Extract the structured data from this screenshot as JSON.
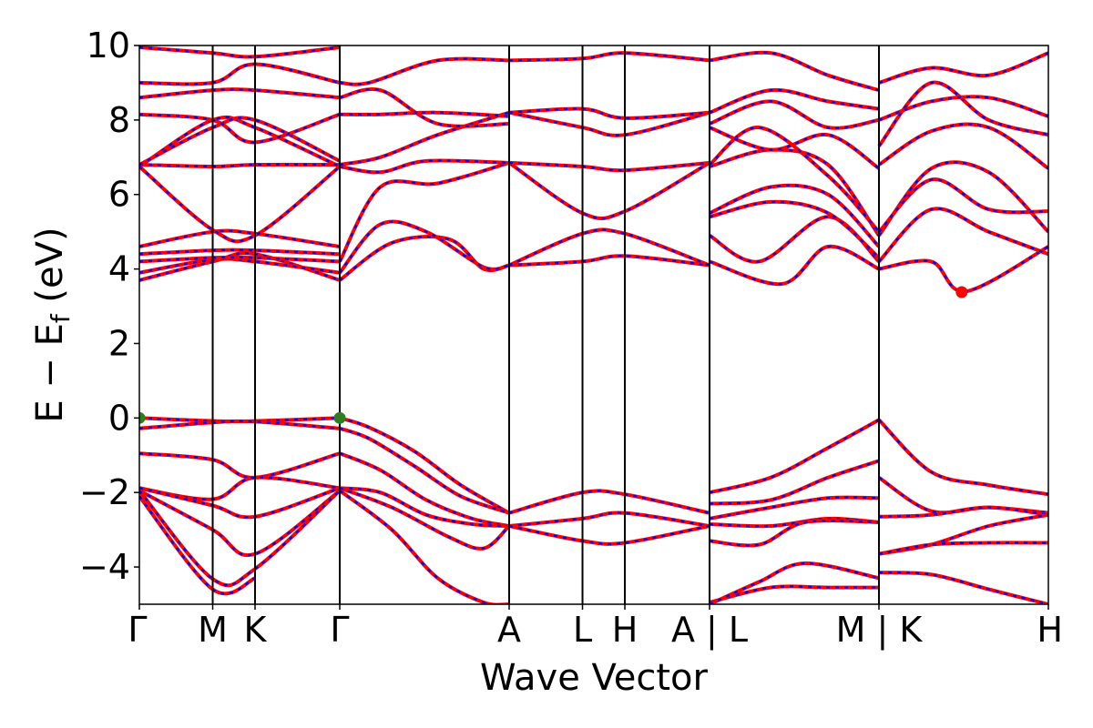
{
  "chart_data": {
    "type": "line",
    "title": "",
    "xlabel": "Wave Vector",
    "ylabel_parts": {
      "main": "E − E",
      "subscript": "f",
      "unit": " (eV)"
    },
    "ylim": [
      -5,
      10
    ],
    "yticks": [
      {
        "value": -4,
        "label": "−4"
      },
      {
        "value": -2,
        "label": "−2"
      },
      {
        "value": 0,
        "label": "0"
      },
      {
        "value": 2,
        "label": "2"
      },
      {
        "value": 4,
        "label": "4"
      },
      {
        "value": 6,
        "label": "6"
      },
      {
        "value": 8,
        "label": "8"
      },
      {
        "value": 10,
        "label": "10"
      }
    ],
    "kpath": [
      {
        "x": 0.0,
        "label": "Γ"
      },
      {
        "x": 0.639,
        "label": "M"
      },
      {
        "x": 1.008,
        "label": "K"
      },
      {
        "x": 1.746,
        "label": "Γ"
      },
      {
        "x": 3.222,
        "label": "A"
      },
      {
        "x": 3.861,
        "label": "L"
      },
      {
        "x": 4.23,
        "label": "H"
      },
      {
        "x": 4.968,
        "label": "A | L"
      },
      {
        "x": 6.444,
        "label": "M | K"
      },
      {
        "x": 7.92,
        "label": "H"
      }
    ],
    "xlim": [
      0,
      7.92
    ],
    "legend": "none",
    "grid": false,
    "series_style": {
      "primary_color": "#ff0000",
      "overlay_color": "#0000ff"
    },
    "series": [
      {
        "x": [
          0,
          0.639,
          1.008,
          1.746
        ],
        "y": [
          0.0,
          -0.08,
          -0.08,
          0.0
        ]
      },
      {
        "x": [
          0,
          0.639,
          1.008,
          1.746
        ],
        "y": [
          -0.28,
          -0.12,
          -0.1,
          -0.28
        ]
      },
      {
        "x": [
          0,
          0.639,
          1.008,
          1.746
        ],
        "y": [
          -0.95,
          -1.12,
          -1.6,
          -0.95
        ]
      },
      {
        "x": [
          0,
          0.639,
          1.008,
          1.746
        ],
        "y": [
          -1.88,
          -2.18,
          -1.6,
          -1.88
        ]
      },
      {
        "x": [
          0,
          0.639,
          1.008,
          1.746
        ],
        "y": [
          -1.88,
          -2.35,
          -2.65,
          -1.88
        ]
      },
      {
        "x": [
          0,
          0.639,
          1.008,
          1.746
        ],
        "y": [
          -1.95,
          -3.0,
          -3.65,
          -1.95
        ]
      },
      {
        "x": [
          0,
          0.639,
          1.008,
          1.746
        ],
        "y": [
          -1.95,
          -4.32,
          -4.05,
          -1.95
        ]
      },
      {
        "x": [
          0,
          0.639,
          1.008
        ],
        "y": [
          -2.1,
          -4.6,
          -4.3
        ]
      },
      {
        "x": [
          1.746,
          2.0,
          2.4,
          2.8,
          3.222
        ],
        "y": [
          0.0,
          -0.25,
          -0.9,
          -1.8,
          -2.55
        ]
      },
      {
        "x": [
          1.746,
          2.0,
          2.4,
          2.8,
          3.222
        ],
        "y": [
          -0.28,
          -0.55,
          -1.3,
          -2.1,
          -2.55
        ]
      },
      {
        "x": [
          1.746,
          2.1,
          2.5,
          2.9,
          3.222
        ],
        "y": [
          -0.95,
          -1.4,
          -2.2,
          -2.7,
          -2.9
        ]
      },
      {
        "x": [
          1.746,
          2.1,
          2.5,
          2.9,
          3.222
        ],
        "y": [
          -1.88,
          -2.0,
          -2.6,
          -2.85,
          -2.9
        ]
      },
      {
        "x": [
          1.746,
          2.2,
          2.7,
          3.0,
          3.222
        ],
        "y": [
          -1.88,
          -2.4,
          -3.2,
          -3.5,
          -2.9
        ]
      },
      {
        "x": [
          1.746,
          2.2,
          2.6,
          3.0,
          3.222
        ],
        "y": [
          -1.95,
          -3.0,
          -4.3,
          -4.95,
          -5.0
        ]
      },
      {
        "x": [
          3.222,
          3.861,
          4.23,
          4.968
        ],
        "y": [
          -2.55,
          -2.0,
          -2.05,
          -2.55
        ]
      },
      {
        "x": [
          3.222,
          3.861,
          4.23,
          4.968
        ],
        "y": [
          -2.9,
          -2.7,
          -2.55,
          -2.9
        ]
      },
      {
        "x": [
          3.222,
          3.861,
          4.23,
          4.968
        ],
        "y": [
          -2.9,
          -3.3,
          -3.35,
          -2.9
        ]
      },
      {
        "x": [
          4.968,
          5.5,
          6.0,
          6.444
        ],
        "y": [
          -2.0,
          -1.6,
          -0.8,
          -0.05
        ]
      },
      {
        "x": [
          4.968,
          5.5,
          6.0,
          6.444
        ],
        "y": [
          -2.3,
          -2.2,
          -1.6,
          -1.15
        ]
      },
      {
        "x": [
          4.968,
          5.5,
          6.0,
          6.444
        ],
        "y": [
          -2.7,
          -2.4,
          -2.15,
          -2.15
        ]
      },
      {
        "x": [
          4.968,
          5.5,
          6.0,
          6.444
        ],
        "y": [
          -2.85,
          -2.9,
          -2.7,
          -2.8
        ]
      },
      {
        "x": [
          4.968,
          5.4,
          5.8,
          6.444
        ],
        "y": [
          -3.3,
          -3.4,
          -2.8,
          -2.8
        ]
      },
      {
        "x": [
          4.968,
          5.5,
          6.0,
          6.444
        ],
        "y": [
          -4.95,
          -4.55,
          -4.55,
          -4.55
        ]
      },
      {
        "x": [
          4.968,
          5.4,
          5.8,
          6.444
        ],
        "y": [
          -5.0,
          -4.4,
          -3.9,
          -4.3
        ]
      },
      {
        "x": [
          6.444,
          6.9,
          7.4,
          7.92
        ],
        "y": [
          -0.05,
          -1.45,
          -1.8,
          -2.05
        ]
      },
      {
        "x": [
          6.444,
          6.9,
          7.4,
          7.92
        ],
        "y": [
          -1.6,
          -2.5,
          -2.4,
          -2.55
        ]
      },
      {
        "x": [
          6.444,
          6.9,
          7.4,
          7.92
        ],
        "y": [
          -2.65,
          -2.6,
          -2.4,
          -2.6
        ]
      },
      {
        "x": [
          6.444,
          6.9,
          7.4,
          7.92
        ],
        "y": [
          -3.65,
          -3.4,
          -2.9,
          -2.6
        ]
      },
      {
        "x": [
          6.444,
          6.9,
          7.4,
          7.92
        ],
        "y": [
          -3.65,
          -3.4,
          -3.35,
          -3.35
        ]
      },
      {
        "x": [
          6.444,
          6.9,
          7.4,
          7.92
        ],
        "y": [
          -4.15,
          -4.2,
          -4.6,
          -5.0
        ]
      },
      {
        "x": [
          0,
          0.639,
          1.008,
          1.746
        ],
        "y": [
          3.7,
          4.2,
          4.4,
          3.7
        ]
      },
      {
        "x": [
          0,
          0.639,
          1.008,
          1.746
        ],
        "y": [
          3.9,
          4.25,
          4.2,
          3.9
        ]
      },
      {
        "x": [
          0,
          0.639,
          1.008,
          1.746
        ],
        "y": [
          4.2,
          4.3,
          4.3,
          4.2
        ]
      },
      {
        "x": [
          0,
          0.639,
          1.008,
          1.746
        ],
        "y": [
          4.4,
          4.5,
          4.5,
          4.4
        ]
      },
      {
        "x": [
          0,
          0.639,
          1.008,
          1.746
        ],
        "y": [
          4.6,
          5.0,
          4.95,
          4.6
        ]
      },
      {
        "x": [
          0,
          0.639,
          1.008,
          1.746
        ],
        "y": [
          6.75,
          5.05,
          4.9,
          6.75
        ]
      },
      {
        "x": [
          0,
          0.639,
          1.008,
          1.746
        ],
        "y": [
          6.8,
          6.75,
          6.8,
          6.8
        ]
      },
      {
        "x": [
          0,
          0.639,
          1.008,
          1.746
        ],
        "y": [
          6.75,
          8.0,
          7.8,
          6.75
        ]
      },
      {
        "x": [
          0,
          0.639,
          1.008,
          1.746
        ],
        "y": [
          6.8,
          7.8,
          8.0,
          6.9
        ]
      },
      {
        "x": [
          0,
          0.639,
          1.008,
          1.746
        ],
        "y": [
          8.15,
          8.0,
          7.4,
          8.15
        ]
      },
      {
        "x": [
          0,
          0.639,
          1.008,
          1.746
        ],
        "y": [
          8.6,
          8.8,
          8.8,
          8.6
        ]
      },
      {
        "x": [
          0,
          0.639,
          1.008,
          1.746
        ],
        "y": [
          9.0,
          9.0,
          9.5,
          9.0
        ]
      },
      {
        "x": [
          0,
          0.639,
          1.008,
          1.746
        ],
        "y": [
          9.95,
          9.8,
          9.7,
          9.95
        ]
      },
      {
        "x": [
          1.746,
          2.2,
          2.7,
          3.0,
          3.222
        ],
        "y": [
          3.7,
          4.7,
          4.8,
          4.0,
          4.1
        ]
      },
      {
        "x": [
          1.746,
          2.1,
          2.5,
          3.0,
          3.222
        ],
        "y": [
          3.9,
          5.2,
          5.0,
          4.05,
          4.1
        ]
      },
      {
        "x": [
          1.746,
          2.1,
          2.6,
          3.222
        ],
        "y": [
          4.2,
          6.2,
          6.3,
          6.85
        ]
      },
      {
        "x": [
          1.746,
          2.1,
          2.5,
          3.222
        ],
        "y": [
          6.75,
          6.6,
          6.9,
          6.85
        ]
      },
      {
        "x": [
          1.746,
          2.1,
          2.6,
          3.222
        ],
        "y": [
          6.8,
          7.0,
          7.6,
          8.2
        ]
      },
      {
        "x": [
          1.746,
          2.1,
          2.6,
          3.222
        ],
        "y": [
          8.15,
          8.15,
          8.2,
          8.1
        ]
      },
      {
        "x": [
          1.746,
          2.1,
          2.6,
          3.222
        ],
        "y": [
          8.6,
          8.8,
          7.9,
          7.9
        ]
      },
      {
        "x": [
          1.746,
          2.0,
          2.6,
          3.222
        ],
        "y": [
          9.0,
          9.0,
          9.6,
          9.6
        ]
      },
      {
        "x": [
          3.222,
          3.861,
          4.23,
          4.968
        ],
        "y": [
          4.1,
          4.2,
          4.35,
          4.1
        ]
      },
      {
        "x": [
          3.222,
          3.861,
          4.23,
          4.968
        ],
        "y": [
          4.1,
          4.95,
          4.95,
          4.1
        ]
      },
      {
        "x": [
          3.222,
          3.861,
          4.23,
          4.968
        ],
        "y": [
          6.85,
          5.5,
          5.55,
          6.85
        ]
      },
      {
        "x": [
          3.222,
          3.861,
          4.23,
          4.968
        ],
        "y": [
          6.85,
          6.75,
          6.65,
          6.85
        ]
      },
      {
        "x": [
          3.222,
          3.861,
          4.23,
          4.968
        ],
        "y": [
          8.2,
          7.8,
          7.6,
          8.2
        ]
      },
      {
        "x": [
          3.222,
          3.861,
          4.23,
          4.968
        ],
        "y": [
          8.2,
          8.3,
          8.05,
          8.2
        ]
      },
      {
        "x": [
          3.222,
          3.861,
          4.23,
          4.968
        ],
        "y": [
          9.6,
          9.65,
          9.8,
          9.6
        ]
      },
      {
        "x": [
          4.968,
          5.6,
          6.0,
          6.444
        ],
        "y": [
          4.2,
          3.6,
          4.6,
          4.0
        ]
      },
      {
        "x": [
          4.968,
          5.4,
          6.0,
          6.444
        ],
        "y": [
          4.9,
          4.2,
          5.4,
          4.2
        ]
      },
      {
        "x": [
          4.968,
          5.5,
          6.0,
          6.444
        ],
        "y": [
          5.4,
          5.8,
          5.5,
          4.3
        ]
      },
      {
        "x": [
          4.968,
          5.5,
          6.0,
          6.444
        ],
        "y": [
          5.5,
          6.2,
          6.0,
          4.6
        ]
      },
      {
        "x": [
          4.968,
          5.5,
          6.0,
          6.444
        ],
        "y": [
          6.75,
          7.2,
          6.8,
          4.9
        ]
      },
      {
        "x": [
          4.968,
          5.4,
          6.0,
          6.444
        ],
        "y": [
          6.8,
          7.8,
          6.5,
          5.0
        ]
      },
      {
        "x": [
          4.968,
          5.5,
          6.0,
          6.444
        ],
        "y": [
          7.8,
          7.2,
          7.6,
          6.7
        ]
      },
      {
        "x": [
          4.968,
          5.5,
          6.0,
          6.444
        ],
        "y": [
          7.9,
          8.5,
          7.8,
          8.0
        ]
      },
      {
        "x": [
          4.968,
          5.5,
          6.0,
          6.444
        ],
        "y": [
          8.2,
          8.8,
          8.5,
          8.3
        ]
      },
      {
        "x": [
          4.968,
          5.5,
          6.0,
          6.444
        ],
        "y": [
          9.6,
          9.8,
          9.2,
          8.8
        ]
      },
      {
        "x": [
          6.444,
          6.9,
          7.2,
          7.92
        ],
        "y": [
          4.0,
          4.2,
          3.4,
          4.6
        ]
      },
      {
        "x": [
          6.444,
          6.9,
          7.4,
          7.92
        ],
        "y": [
          4.2,
          5.6,
          5.0,
          4.4
        ]
      },
      {
        "x": [
          6.444,
          6.9,
          7.4,
          7.92
        ],
        "y": [
          4.9,
          6.7,
          6.6,
          5.0
        ]
      },
      {
        "x": [
          6.444,
          6.9,
          7.4,
          7.92
        ],
        "y": [
          5.0,
          6.4,
          5.6,
          5.55
        ]
      },
      {
        "x": [
          6.444,
          6.9,
          7.4,
          7.92
        ],
        "y": [
          6.8,
          7.7,
          7.8,
          6.7
        ]
      },
      {
        "x": [
          6.444,
          6.9,
          7.4,
          7.92
        ],
        "y": [
          7.3,
          9.0,
          8.0,
          7.6
        ]
      },
      {
        "x": [
          6.444,
          6.9,
          7.4,
          7.92
        ],
        "y": [
          8.0,
          8.5,
          8.6,
          8.1
        ]
      },
      {
        "x": [
          6.444,
          6.9,
          7.4,
          7.92
        ],
        "y": [
          9.0,
          9.4,
          9.2,
          9.8
        ]
      }
    ],
    "markers": [
      {
        "x": 0.0,
        "y": 0.0,
        "color": "#2e7d1e"
      },
      {
        "x": 1.746,
        "y": 0.0,
        "color": "#2e7d1e"
      },
      {
        "x": 7.165,
        "y": 3.38,
        "color": "#ff0000"
      }
    ]
  }
}
